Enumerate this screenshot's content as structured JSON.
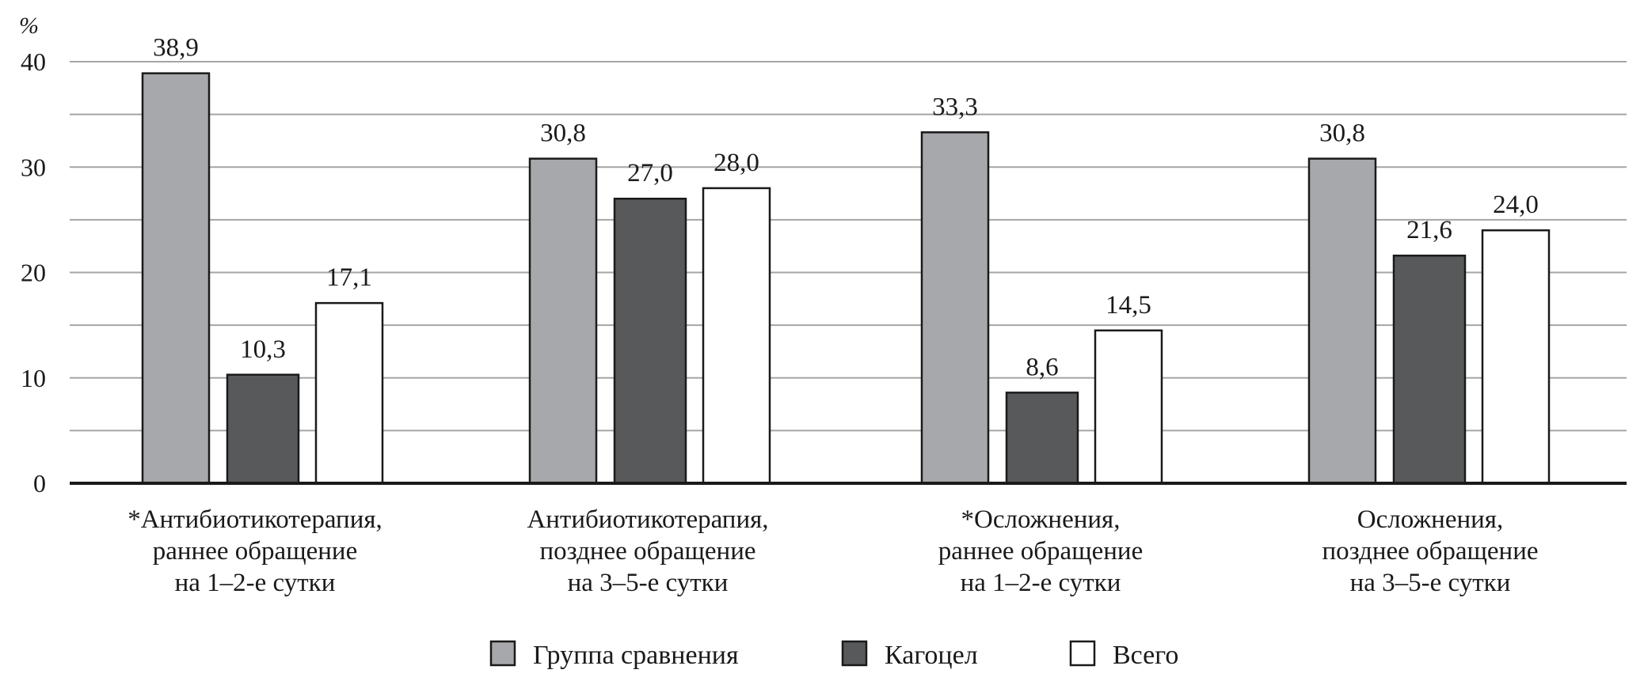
{
  "chart_data": {
    "type": "bar",
    "ylabel": "%",
    "ylim": [
      0,
      40
    ],
    "yticks": [
      "0",
      "10",
      "20",
      "30",
      "40"
    ],
    "grid": true,
    "legend_position": "bottom",
    "categories": [
      [
        "*Антибиотикотерапия,",
        "раннее обращение",
        "на 1–2-е сутки"
      ],
      [
        "Антибиотикотерапия,",
        "позднее обращение",
        "на 3–5-е сутки"
      ],
      [
        "*Осложнения,",
        "раннее обращение",
        "на 1–2-е сутки"
      ],
      [
        "Осложнения,",
        "позднее обращение",
        "на 3–5-е сутки"
      ]
    ],
    "series": [
      {
        "name": "Группа сравнения",
        "color": "#a7a8ab",
        "values": [
          38.9,
          30.8,
          33.3,
          30.8
        ],
        "labels": [
          "38,9",
          "30,8",
          "33,3",
          "30,8"
        ]
      },
      {
        "name": "Кагоцел",
        "color": "#58595b",
        "values": [
          10.3,
          27.0,
          8.6,
          21.6
        ],
        "labels": [
          "10,3",
          "27,0",
          "8,6",
          "21,6"
        ]
      },
      {
        "name": "Всего",
        "color": "#ffffff",
        "values": [
          17.1,
          28.0,
          14.5,
          24.0
        ],
        "labels": [
          "17,1",
          "28,0",
          "14,5",
          "24,0"
        ]
      }
    ]
  }
}
